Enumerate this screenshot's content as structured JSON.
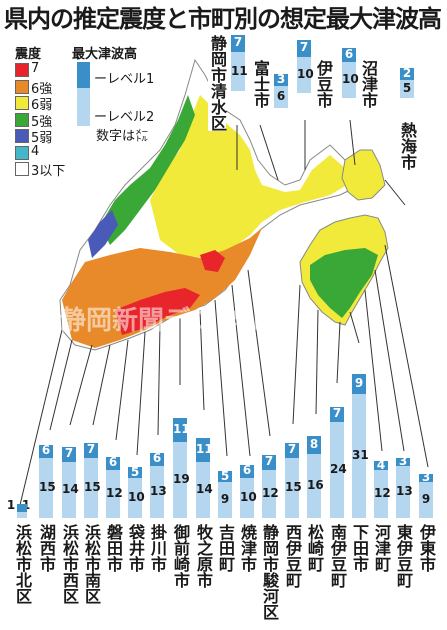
{
  "title": "県内の推定震度と市町別の想定最大津波高",
  "intensity_legend": {
    "heading": "震度",
    "items": [
      {
        "label": "7",
        "color": "#e8252a"
      },
      {
        "label": "6強",
        "color": "#e8892a"
      },
      {
        "label": "6弱",
        "color": "#f2ea3a"
      },
      {
        "label": "5強",
        "color": "#3aa836"
      },
      {
        "label": "5弱",
        "color": "#4a5ab8"
      },
      {
        "label": "4",
        "color": "#44b8c8"
      },
      {
        "label": "3以下",
        "color": "#ffffff"
      }
    ]
  },
  "tsunami_legend": {
    "heading": "最大津波高",
    "level1": "レベル1",
    "level2": "レベル2",
    "note": "数字は㍍",
    "level1_color": "#3a8fc8",
    "level2_color": "#b4d6ee"
  },
  "watermark": "静岡新聞デジタル",
  "chart_data": {
    "type": "bar",
    "series": [
      {
        "name": "レベル1",
        "key": "l1"
      },
      {
        "name": "レベル2",
        "key": "l2"
      }
    ],
    "bottom_cities": [
      {
        "name": "浜松市北区",
        "l1": "1",
        "l2": "1"
      },
      {
        "name": "湖西市",
        "l1": "6",
        "l2": "15"
      },
      {
        "name": "浜松市西区",
        "l1": "7",
        "l2": "14"
      },
      {
        "name": "浜松市南区",
        "l1": "7",
        "l2": "15"
      },
      {
        "name": "磐田市",
        "l1": "6",
        "l2": "12"
      },
      {
        "name": "袋井市",
        "l1": "5",
        "l2": "10"
      },
      {
        "name": "掛川市",
        "l1": "6",
        "l2": "13"
      },
      {
        "name": "御前崎市",
        "l1": "11",
        "l2": "19"
      },
      {
        "name": "牧之原市",
        "l1": "11",
        "l2": "14"
      },
      {
        "name": "吉田町",
        "l1": "5",
        "l2": "9"
      },
      {
        "name": "焼津市",
        "l1": "6",
        "l2": "10"
      },
      {
        "name": "静岡市駿河区",
        "l1": "7",
        "l2": "12"
      },
      {
        "name": "西伊豆町",
        "l1": "7",
        "l2": "15"
      },
      {
        "name": "松崎町",
        "l1": "8",
        "l2": "16"
      },
      {
        "name": "南伊豆町",
        "l1": "7",
        "l2": "24"
      },
      {
        "name": "下田市",
        "l1": "9",
        "l2": "31"
      },
      {
        "name": "河津町",
        "l1": "4",
        "l2": "12"
      },
      {
        "name": "東伊豆町",
        "l1": "3",
        "l2": "13"
      },
      {
        "name": "伊東市",
        "l1": "3",
        "l2": "9"
      }
    ],
    "top_cities": [
      {
        "name": "静岡市清水区",
        "l1": "7",
        "l2": "11"
      },
      {
        "name": "富士市",
        "l1": "3",
        "l2": "6"
      },
      {
        "name": "伊豆市",
        "l1": "7",
        "l2": "10"
      },
      {
        "name": "沼津市",
        "l1": "6",
        "l2": "10"
      },
      {
        "name": "熱海市",
        "l1": "2",
        "l2": "5"
      }
    ]
  }
}
